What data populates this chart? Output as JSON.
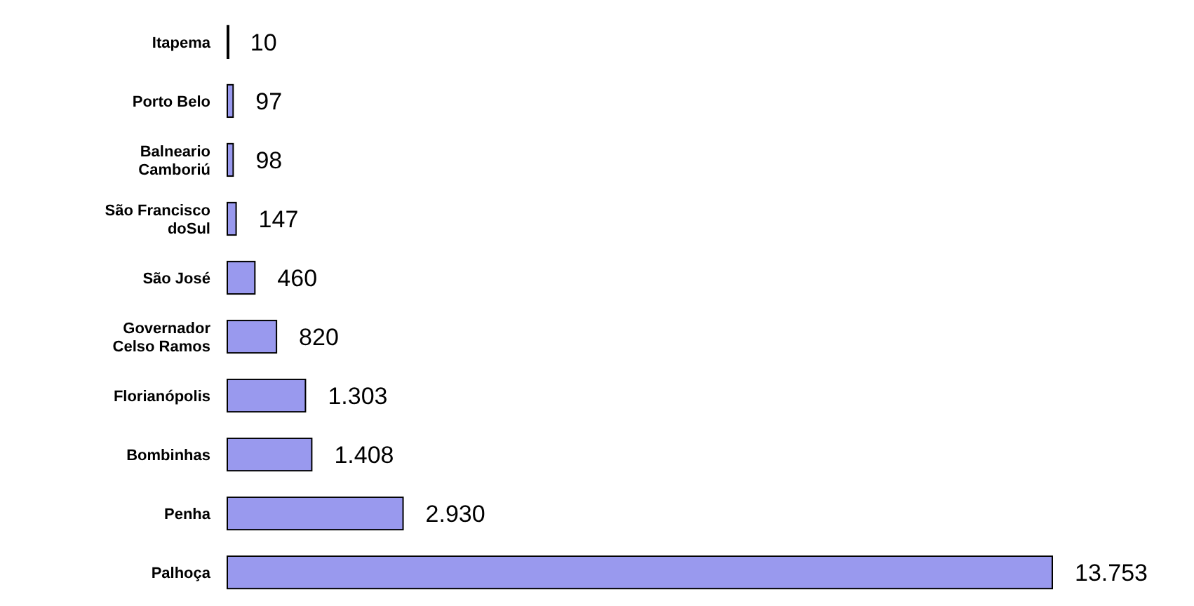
{
  "chart_data": {
    "type": "bar",
    "orientation": "horizontal",
    "categories": [
      "Itapema",
      "Porto Belo",
      "Balneario Camboriú",
      "São Francisco doSul",
      "São José",
      "Governador Celso Ramos",
      "Florianópolis",
      "Bombinhas",
      "Penha",
      "Palhoça"
    ],
    "values": [
      10,
      97,
      98,
      147,
      460,
      820,
      1303,
      1408,
      2930,
      13753
    ],
    "value_labels": [
      "10",
      "97",
      "98",
      "147",
      "460",
      "820",
      "1.303",
      "1.408",
      "2.930",
      "13.753"
    ],
    "color": "#9999ee"
  }
}
